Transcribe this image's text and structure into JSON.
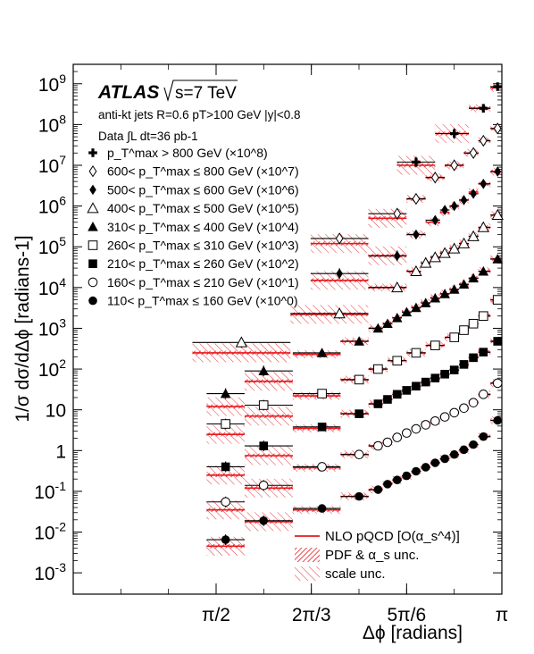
{
  "chart_data": {
    "type": "scatter",
    "log_y": true,
    "ylim": [
      0.0003,
      3000000000
    ],
    "xlim_rad": [
      0.785398,
      3.14159
    ],
    "x_ticks": [
      {
        "value": 1.570796,
        "label": "π/2"
      },
      {
        "value": 2.094395,
        "label": "2π/3"
      },
      {
        "value": 2.617994,
        "label": "5π/6"
      },
      {
        "value": 3.141593,
        "label": "π"
      }
    ],
    "y_ticks": [
      {
        "value": 0.001,
        "label": "10-3",
        "base": "10",
        "exp": "-3"
      },
      {
        "value": 0.01,
        "label": "10-2",
        "base": "10",
        "exp": "-2"
      },
      {
        "value": 0.1,
        "label": "10-1",
        "base": "10",
        "exp": "-1"
      },
      {
        "value": 1,
        "label": "1"
      },
      {
        "value": 10,
        "label": "10"
      },
      {
        "value": 100,
        "label": "102",
        "base": "10",
        "exp": "2"
      },
      {
        "value": 1000,
        "label": "103",
        "base": "10",
        "exp": "3"
      },
      {
        "value": 10000,
        "label": "104",
        "base": "10",
        "exp": "4"
      },
      {
        "value": 100000,
        "label": "105",
        "base": "10",
        "exp": "5"
      },
      {
        "value": 1000000,
        "label": "106",
        "base": "10",
        "exp": "6"
      },
      {
        "value": 10000000,
        "label": "107",
        "base": "10",
        "exp": "7"
      },
      {
        "value": 100000000,
        "label": "108",
        "base": "10",
        "exp": "8"
      },
      {
        "value": 1000000000,
        "label": "109",
        "base": "10",
        "exp": "9"
      }
    ],
    "xlabel": "Δϕ [radians]",
    "ylabel": "1/σ dσ/dΔϕ [radians-1]",
    "atlas_label": "ATLAS",
    "energy_label": "s=7 TeV",
    "jet_info": "anti-kt jets R=0.6  pT>100 GeV   |y|<0.8",
    "data_label": "Data ∫L dt=36 pb-1",
    "series": [
      {
        "name": "p_T^max > 800 GeV (×10^8)",
        "marker": "plus",
        "x": [
          2.67,
          2.88,
          3.04,
          3.118
        ],
        "y": [
          12000000.0,
          60000000.0,
          250000000.0,
          850000000.0
        ],
        "nlo": [
          10000000.0,
          60000000.0,
          250000000.0,
          800000000.0
        ]
      },
      {
        "name": "600< p_T^max ≤ 800 GeV (×10^7)",
        "marker": "open-diamond",
        "x": [
          2.249,
          2.566,
          2.67,
          2.775,
          2.88,
          2.985,
          3.04,
          3.118
        ],
        "y": [
          160000.0,
          650000.0,
          1500000.0,
          5000000.0,
          10000000.0,
          20000000.0,
          40000000.0,
          80000000.0
        ],
        "nlo": [
          120000.0,
          500000.0,
          1500000.0,
          5000000.0,
          10000000.0,
          20000000.0,
          40000000.0,
          80000000.0
        ]
      },
      {
        "name": "500< p_T^max ≤ 600 GeV (×10^6)",
        "marker": "filled-diamond",
        "x": [
          2.249,
          2.566,
          2.67,
          2.775,
          2.828,
          2.88,
          2.933,
          2.985,
          3.04,
          3.118
        ],
        "y": [
          22000.0,
          60000.0,
          200000.0,
          450000.0,
          800000.0,
          1000000.0,
          1400000.0,
          2000000.0,
          3500000.0,
          7000000.0
        ],
        "nlo": [
          15000.0,
          60000.0,
          200000.0,
          400000.0,
          700000.0,
          1000000.0,
          1400000.0,
          2200000.0,
          3500000.0,
          7000000.0
        ]
      },
      {
        "name": "400< p_T^max ≤ 500 GeV (×10^5)",
        "marker": "open-triangle",
        "x": [
          1.71,
          2.249,
          2.566,
          2.67,
          2.723,
          2.775,
          2.828,
          2.88,
          2.933,
          2.985,
          3.04,
          3.118
        ],
        "y": [
          450,
          2300,
          10000.0,
          25000.0,
          40000.0,
          55000.0,
          70000.0,
          90000.0,
          120000.0,
          180000.0,
          300000.0,
          600000.0
        ],
        "nlo": [
          250,
          2200,
          10000.0,
          25000.0,
          40000.0,
          55000.0,
          70000.0,
          90000.0,
          120000.0,
          180000.0,
          300000.0,
          600000.0
        ]
      },
      {
        "name": "310< p_T^max ≤ 400 GeV (×10^4)",
        "marker": "filled-triangle",
        "x": [
          1.623,
          1.832,
          2.153,
          2.357,
          2.461,
          2.513,
          2.566,
          2.618,
          2.67,
          2.723,
          2.775,
          2.828,
          2.88,
          2.933,
          2.985,
          3.04,
          3.118
        ],
        "y": [
          25,
          90,
          250,
          480,
          1000,
          1300,
          1800,
          2500,
          3200,
          4200,
          5500,
          7000,
          9000,
          12000.0,
          17000.0,
          25000.0,
          50000.0
        ],
        "nlo": [
          12,
          50,
          230,
          480,
          1000,
          1300,
          1800,
          2500,
          3200,
          4200,
          5500,
          7000,
          9000,
          12000.0,
          17000.0,
          25000.0,
          50000.0
        ]
      },
      {
        "name": "260< p_T^max ≤ 310 GeV (×10^3)",
        "marker": "open-square",
        "x": [
          1.623,
          1.832,
          2.153,
          2.357,
          2.461,
          2.566,
          2.67,
          2.775,
          2.88,
          2.933,
          2.985,
          3.04,
          3.118
        ],
        "y": [
          4.5,
          13,
          25,
          55,
          100,
          160,
          250,
          380,
          600,
          900,
          1300,
          2000,
          5000
        ],
        "nlo": [
          2.5,
          7,
          22,
          55,
          100,
          160,
          250,
          380,
          600,
          900,
          1300,
          2000,
          5000
        ]
      },
      {
        "name": "210< p_T^max ≤ 260 GeV (×10^2)",
        "marker": "filled-square",
        "x": [
          1.623,
          1.832,
          2.153,
          2.357,
          2.461,
          2.513,
          2.566,
          2.618,
          2.67,
          2.723,
          2.775,
          2.828,
          2.88,
          2.933,
          2.985,
          3.04,
          3.118
        ],
        "y": [
          0.4,
          1.3,
          3.8,
          8,
          14,
          18,
          24,
          30,
          38,
          48,
          60,
          75,
          95,
          130,
          190,
          260,
          480
        ],
        "nlo": [
          0.25,
          0.75,
          3.5,
          8,
          14,
          18,
          24,
          30,
          38,
          48,
          60,
          75,
          95,
          130,
          190,
          260,
          480
        ]
      },
      {
        "name": "160< p_T^max ≤ 210 GeV (×10^1)",
        "marker": "open-circle",
        "x": [
          1.623,
          1.832,
          2.153,
          2.357,
          2.461,
          2.513,
          2.566,
          2.618,
          2.67,
          2.723,
          2.775,
          2.828,
          2.88,
          2.933,
          2.985,
          3.04,
          3.118
        ],
        "y": [
          0.055,
          0.14,
          0.4,
          0.8,
          1.3,
          1.6,
          2.1,
          2.7,
          3.4,
          4.3,
          5.3,
          6.7,
          8.5,
          11,
          15,
          24,
          45
        ],
        "nlo": [
          0.035,
          0.12,
          0.38,
          0.8,
          1.3,
          1.6,
          2.1,
          2.7,
          3.4,
          4.3,
          5.3,
          6.7,
          8.5,
          11,
          15,
          24,
          45
        ]
      },
      {
        "name": "110< p_T^max ≤ 160 GeV (×10^0)",
        "marker": "filled-circle",
        "x": [
          1.623,
          1.832,
          2.153,
          2.357,
          2.461,
          2.513,
          2.566,
          2.618,
          2.67,
          2.723,
          2.775,
          2.828,
          2.88,
          2.933,
          2.985,
          3.04,
          3.118
        ],
        "y": [
          0.0065,
          0.019,
          0.038,
          0.075,
          0.11,
          0.15,
          0.19,
          0.24,
          0.31,
          0.39,
          0.5,
          0.63,
          0.8,
          1.05,
          1.4,
          2.2,
          5.5
        ],
        "nlo": [
          0.0045,
          0.018,
          0.035,
          0.075,
          0.11,
          0.15,
          0.19,
          0.24,
          0.31,
          0.39,
          0.5,
          0.63,
          0.8,
          1.05,
          1.4,
          2.2,
          5.5
        ]
      }
    ],
    "legend_bottom": [
      {
        "label": "NLO pQCD [O(α_s^4)]",
        "style": "line"
      },
      {
        "label": "PDF & α_s unc.",
        "style": "hatch-dense"
      },
      {
        "label": "scale unc.",
        "style": "hatch-sparse"
      }
    ],
    "colors": {
      "nlo": "#e8181e",
      "markers": "#000000",
      "frame": "#000000"
    }
  }
}
